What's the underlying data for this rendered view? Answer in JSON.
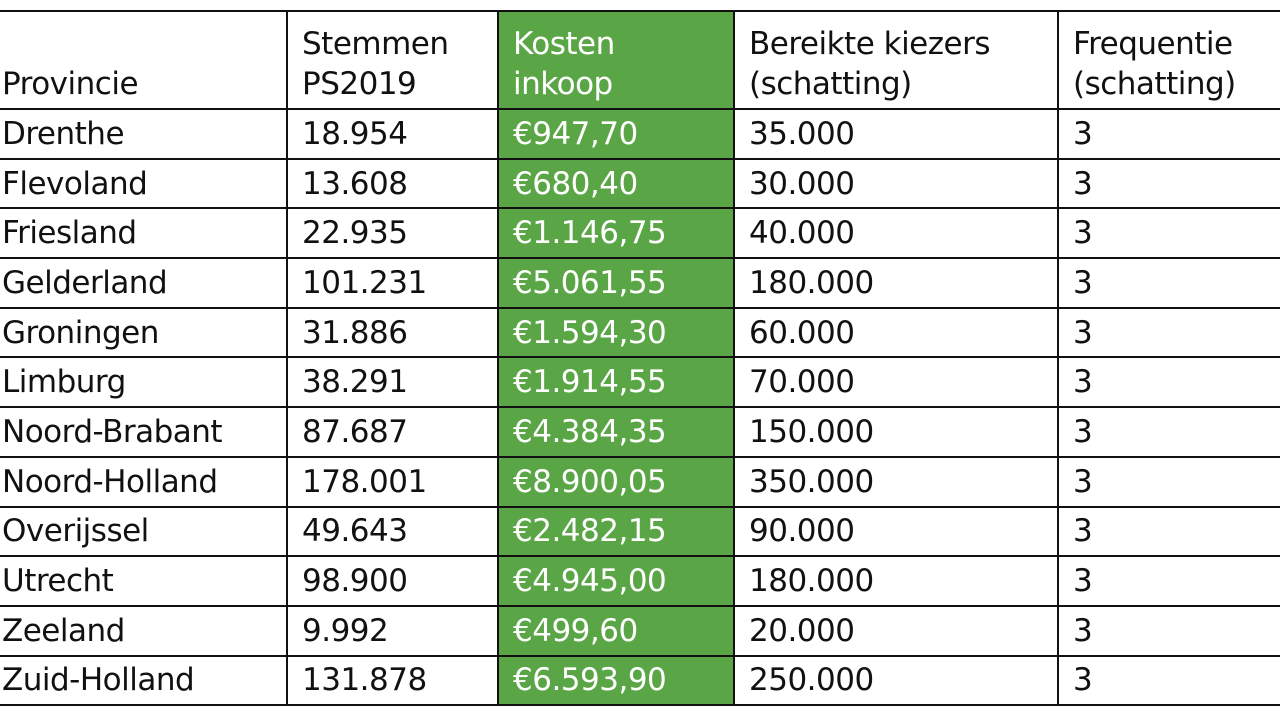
{
  "table": {
    "highlight_color": "#5aa646",
    "highlighted_column": 2,
    "headers": [
      [
        "",
        "Provincie"
      ],
      [
        "Stemmen",
        "PS2019"
      ],
      [
        "Kosten",
        "inkoop"
      ],
      [
        "Bereikte kiezers",
        "(schatting)"
      ],
      [
        "Frequentie",
        "(schatting)"
      ]
    ],
    "rows": [
      [
        "Drenthe",
        "18.954",
        "€947,70",
        "35.000",
        "3"
      ],
      [
        "Flevoland",
        "13.608",
        "€680,40",
        "30.000",
        "3"
      ],
      [
        "Friesland",
        "22.935",
        "€1.146,75",
        "40.000",
        "3"
      ],
      [
        "Gelderland",
        "101.231",
        "€5.061,55",
        "180.000",
        "3"
      ],
      [
        "Groningen",
        "31.886",
        "€1.594,30",
        "60.000",
        "3"
      ],
      [
        "Limburg",
        "38.291",
        "€1.914,55",
        "70.000",
        "3"
      ],
      [
        "Noord-Brabant",
        "87.687",
        "€4.384,35",
        "150.000",
        "3"
      ],
      [
        "Noord-Holland",
        "178.001",
        "€8.900,05",
        "350.000",
        "3"
      ],
      [
        "Overijssel",
        "49.643",
        "€2.482,15",
        "90.000",
        "3"
      ],
      [
        "Utrecht",
        "98.900",
        "€4.945,00",
        "180.000",
        "3"
      ],
      [
        "Zeeland",
        "9.992",
        "€499,60",
        "20.000",
        "3"
      ],
      [
        "Zuid-Holland",
        "131.878",
        "€6.593,90",
        "250.000",
        "3"
      ]
    ]
  }
}
